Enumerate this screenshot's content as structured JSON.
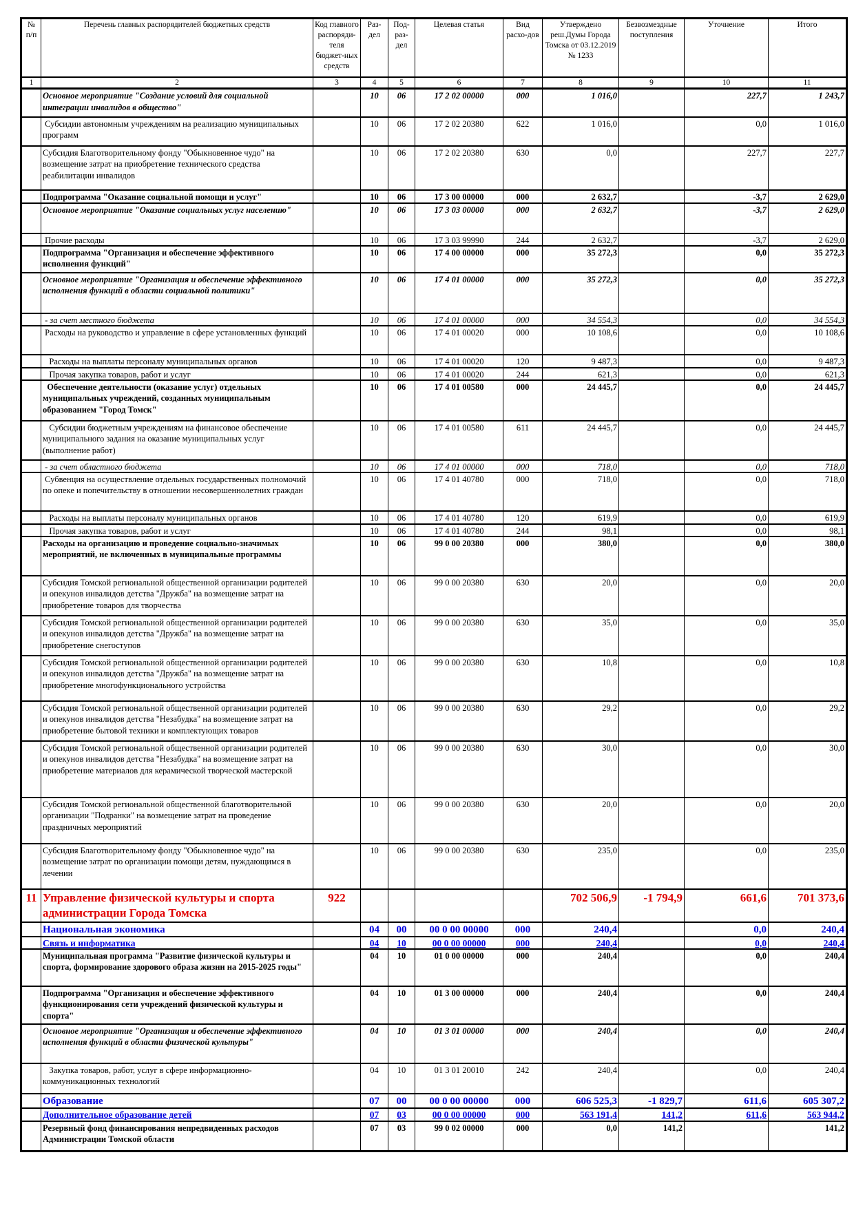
{
  "header": {
    "columns": [
      "№ п/п",
      "Перечень главных распорядителей бюджетных средств",
      "Код главного распоряди-теля бюджет-ных средств",
      "Раз-дел",
      "Под-раз-дел",
      "Целевая статья",
      "Вид расхо-дов",
      "Утверждено реш.Думы Города Томска от 03.12.2019 № 1233",
      "Безвозмездные поступления",
      "Уточнение",
      "Итого"
    ],
    "column_numbers": [
      "1",
      "2",
      "3",
      "4",
      "5",
      "6",
      "7",
      "8",
      "9",
      "10",
      "11"
    ]
  },
  "rows": [
    {
      "style": "bi",
      "num": "",
      "name": "Основное мероприятие \"Создание условий для социальной интеграции инвалидов в общество\"",
      "code": "",
      "razdel": "10",
      "podrazdel": "06",
      "target": "17 2 02 00000",
      "vid": "000",
      "approved": "1 016,0",
      "free": "",
      "clarif": "227,7",
      "total": "1 243,7"
    },
    {
      "style": "",
      "num": "",
      "name": " Субсидии автономным учреждениям на реализацию муниципальных программ",
      "code": "",
      "razdel": "10",
      "podrazdel": "06",
      "target": "17 2 02 20380",
      "vid": "622",
      "approved": "1 016,0",
      "free": "",
      "clarif": "0,0",
      "total": "1 016,0"
    },
    {
      "style": "",
      "num": "",
      "name": "Субсидия Благотворительному фонду \"Обыкновенное чудо\" на возмещение затрат на приобретение технического средства реабилитации инвалидов",
      "code": "",
      "razdel": "10",
      "podrazdel": "06",
      "target": "17 2 02 20380",
      "vid": "630",
      "approved": "0,0",
      "free": "",
      "clarif": "227,7",
      "total": "227,7"
    },
    {
      "style": "bold",
      "num": "",
      "name": "Подпрограмма \"Оказание социальной помощи и услуг\"",
      "code": "",
      "razdel": "10",
      "podrazdel": "06",
      "target": "17 3 00 00000",
      "vid": "000",
      "approved": "2 632,7",
      "free": "",
      "clarif": "-3,7",
      "total": "2 629,0"
    },
    {
      "style": "bi",
      "num": "",
      "name": "Основное мероприятие \"Оказание социальных услуг населению\"",
      "code": "",
      "razdel": "10",
      "podrazdel": "06",
      "target": "17 3 03 00000",
      "vid": "000",
      "approved": "2 632,7",
      "free": "",
      "clarif": "-3,7",
      "total": "2 629,0"
    },
    {
      "style": "",
      "num": "",
      "name": " Прочие расходы",
      "code": "",
      "razdel": "10",
      "podrazdel": "06",
      "target": "17 3 03 99990",
      "vid": "244",
      "approved": "2 632,7",
      "free": "",
      "clarif": "-3,7",
      "total": "2 629,0"
    },
    {
      "style": "bold",
      "num": "",
      "name": "Подпрограмма \"Организация и обеспечение эффективного исполнения функций\"",
      "code": "",
      "razdel": "10",
      "podrazdel": "06",
      "target": "17 4 00 00000",
      "vid": "000",
      "approved": "35 272,3",
      "free": "",
      "clarif": "0,0",
      "total": "35 272,3"
    },
    {
      "style": "bi",
      "num": "",
      "name": "Основное мероприятие \"Организация и обеспечение эффективного исполнения функций в области социальной политики\"",
      "code": "",
      "razdel": "10",
      "podrazdel": "06",
      "target": "17 4 01 00000",
      "vid": "000",
      "approved": "35 272,3",
      "free": "",
      "clarif": "0,0",
      "total": "35 272,3"
    },
    {
      "style": "it",
      "num": "",
      "name": " - за счет местного бюджета",
      "code": "",
      "razdel": "10",
      "podrazdel": "06",
      "target": "17 4 01 00000",
      "vid": "000",
      "approved": "34 554,3",
      "free": "",
      "clarif": "0,0",
      "total": "34 554,3"
    },
    {
      "style": "",
      "num": "",
      "name": " Расходы на руководство и управление в сфере установленных функций",
      "code": "",
      "razdel": "10",
      "podrazdel": "06",
      "target": "17 4 01 00020",
      "vid": "000",
      "approved": "10 108,6",
      "free": "",
      "clarif": "0,0",
      "total": "10 108,6"
    },
    {
      "style": "",
      "num": "",
      "name": "   Расходы на выплаты персоналу муниципальных органов",
      "code": "",
      "razdel": "10",
      "podrazdel": "06",
      "target": "17 4 01 00020",
      "vid": "120",
      "approved": "9 487,3",
      "free": "",
      "clarif": "0,0",
      "total": "9 487,3"
    },
    {
      "style": "",
      "num": "",
      "name": "   Прочая закупка товаров, работ и услуг",
      "code": "",
      "razdel": "10",
      "podrazdel": "06",
      "target": "17 4 01 00020",
      "vid": "244",
      "approved": "621,3",
      "free": "",
      "clarif": "0,0",
      "total": "621,3"
    },
    {
      "style": "bold",
      "num": "",
      "name": "  Обеспечение деятельности (оказание услуг) отдельных муниципальных учреждений, созданных муниципальным образованием \"Город Томск\"",
      "code": "",
      "razdel": "10",
      "podrazdel": "06",
      "target": "17 4 01 00580",
      "vid": "000",
      "approved": "24 445,7",
      "free": "",
      "clarif": "0,0",
      "total": "24 445,7"
    },
    {
      "style": "",
      "num": "",
      "name": "   Субсидии бюджетным учреждениям на финансовое обеспечение муниципального задания на оказание муниципальных услуг (выполнение работ)",
      "code": "",
      "razdel": "10",
      "podrazdel": "06",
      "target": "17 4 01 00580",
      "vid": "611",
      "approved": "24 445,7",
      "free": "",
      "clarif": "0,0",
      "total": "24 445,7"
    },
    {
      "style": "it",
      "num": "",
      "name": " - за счет областного бюджета",
      "code": "",
      "razdel": "10",
      "podrazdel": "06",
      "target": "17 4 01 00000",
      "vid": "000",
      "approved": "718,0",
      "free": "",
      "clarif": "0,0",
      "total": "718,0"
    },
    {
      "style": "",
      "num": "",
      "name": " Субвенция на осуществление отдельных государственных полномочий по опеке и попечительству в отношении несовершеннолетних граждан",
      "code": "",
      "razdel": "10",
      "podrazdel": "06",
      "target": "17 4 01 40780",
      "vid": "000",
      "approved": "718,0",
      "free": "",
      "clarif": "0,0",
      "total": "718,0"
    },
    {
      "style": "",
      "num": "",
      "name": "   Расходы на выплаты персоналу муниципальных органов",
      "code": "",
      "razdel": "10",
      "podrazdel": "06",
      "target": "17 4 01 40780",
      "vid": "120",
      "approved": "619,9",
      "free": "",
      "clarif": "0,0",
      "total": "619,9"
    },
    {
      "style": "",
      "num": "",
      "name": "   Прочая закупка товаров, работ и услуг",
      "code": "",
      "razdel": "10",
      "podrazdel": "06",
      "target": "17 4 01 40780",
      "vid": "244",
      "approved": "98,1",
      "free": "",
      "clarif": "0,0",
      "total": "98,1"
    },
    {
      "style": "bold",
      "num": "",
      "name": "Расходы на организацию и проведение социально-значимых мероприятий, не включенных в муниципальные программы",
      "code": "",
      "razdel": "10",
      "podrazdel": "06",
      "target": "99 0 00 20380",
      "vid": "000",
      "approved": "380,0",
      "free": "",
      "clarif": "0,0",
      "total": "380,0"
    },
    {
      "style": "",
      "num": "",
      "name": "Субсидия Томской региональной общественной организации родителей и опекунов инвалидов детства \"Дружба\" на возмещение затрат на приобретение товаров для творчества",
      "code": "",
      "razdel": "10",
      "podrazdel": "06",
      "target": "99 0 00 20380",
      "vid": "630",
      "approved": "20,0",
      "free": "",
      "clarif": "0,0",
      "total": "20,0"
    },
    {
      "style": "",
      "num": "",
      "name": "Субсидия Томской региональной общественной организации родителей и опекунов инвалидов детства \"Дружба\" на возмещение затрат на приобретение снегоступов",
      "code": "",
      "razdel": "10",
      "podrazdel": "06",
      "target": "99 0 00 20380",
      "vid": "630",
      "approved": "35,0",
      "free": "",
      "clarif": "0,0",
      "total": "35,0"
    },
    {
      "style": "",
      "num": "",
      "name": "Субсидия Томской региональной общественной организации родителей и опекунов инвалидов детства \"Дружба\" на возмещение затрат на приобретение многофункционального устройства",
      "code": "",
      "razdel": "10",
      "podrazdel": "06",
      "target": "99 0 00 20380",
      "vid": "630",
      "approved": "10,8",
      "free": "",
      "clarif": "0,0",
      "total": "10,8"
    },
    {
      "style": "",
      "num": "",
      "name": "Субсидия Томской региональной общественной организации родителей и опекунов инвалидов детства \"Незабудка\" на возмещение затрат на приобретение бытовой техники и комплектующих товаров",
      "code": "",
      "razdel": "10",
      "podrazdel": "06",
      "target": "99 0 00 20380",
      "vid": "630",
      "approved": "29,2",
      "free": "",
      "clarif": "0,0",
      "total": "29,2"
    },
    {
      "style": "",
      "num": "",
      "name": "Субсидия Томской региональной общественной организации родителей и опекунов инвалидов детства \"Незабудка\" на возмещение затрат на приобретение материалов для керамической творческой мастерской",
      "code": "",
      "razdel": "10",
      "podrazdel": "06",
      "target": "99 0 00 20380",
      "vid": "630",
      "approved": "30,0",
      "free": "",
      "clarif": "0,0",
      "total": "30,0"
    },
    {
      "style": "",
      "num": "",
      "name": "Субсидия Томской региональной общественной благотворительной организации \"Подранки\" на возмещение затрат на проведение праздничных мероприятий",
      "code": "",
      "razdel": "10",
      "podrazdel": "06",
      "target": "99 0 00 20380",
      "vid": "630",
      "approved": "20,0",
      "free": "",
      "clarif": "0,0",
      "total": "20,0"
    },
    {
      "style": "",
      "num": "",
      "name": "Субсидия Благотворительному фонду \"Обыкновенное чудо\" на возмещение затрат по организации помощи детям, нуждающимся в лечении",
      "code": "",
      "razdel": "10",
      "podrazdel": "06",
      "target": "99 0 00 20380",
      "vid": "630",
      "approved": "235,0",
      "free": "",
      "clarif": "0,0",
      "total": "235,0"
    },
    {
      "style": "section",
      "num": "11",
      "name": "Управление физической культуры и спорта администрации Города Томска",
      "code": "922",
      "razdel": "",
      "podrazdel": "",
      "target": "",
      "vid": "",
      "approved": "702 506,9",
      "free": "-1 794,9",
      "clarif": "661,6",
      "total": "701 373,6"
    },
    {
      "style": "blue",
      "num": "",
      "name": "Национальная экономика",
      "code": "",
      "razdel": "04",
      "podrazdel": "00",
      "target": "00 0 00 00000",
      "vid": "000",
      "approved": "240,4",
      "free": "",
      "clarif": "0,0",
      "total": "240,4"
    },
    {
      "style": "blue2",
      "num": "",
      "name": "Связь и информатика",
      "code": "",
      "razdel": "04",
      "podrazdel": "10",
      "target": "00 0 00 00000",
      "vid": "000",
      "approved": "240,4",
      "free": "",
      "clarif": "0,0",
      "total": "240,4"
    },
    {
      "style": "bold",
      "num": "",
      "name": "Муниципальная программа \"Развитие физической культуры и спорта, формирование здорового образа жизни на 2015-2025 годы\"",
      "code": "",
      "razdel": "04",
      "podrazdel": "10",
      "target": "01 0 00 00000",
      "vid": "000",
      "approved": "240,4",
      "free": "",
      "clarif": "0,0",
      "total": "240,4"
    },
    {
      "style": "bold",
      "num": "",
      "name": "Подпрограмма \"Организация и обеспечение эффективного функционирования сети учреждений физической культуры и спорта\"",
      "code": "",
      "razdel": "04",
      "podrazdel": "10",
      "target": "01 3 00 00000",
      "vid": "000",
      "approved": "240,4",
      "free": "",
      "clarif": "0,0",
      "total": "240,4"
    },
    {
      "style": "bi",
      "num": "",
      "name": "Основное мероприятие \"Организация и обеспечение эффективного исполнения функций в области физической культуры\"",
      "code": "",
      "razdel": "04",
      "podrazdel": "10",
      "target": "01 3 01 00000",
      "vid": "000",
      "approved": "240,4",
      "free": "",
      "clarif": "0,0",
      "total": "240,4"
    },
    {
      "style": "",
      "num": "",
      "name": "   Закупка товаров, работ, услуг в сфере информационно-коммуникационных технологий",
      "code": "",
      "razdel": "04",
      "podrazdel": "10",
      "target": "01 3 01 20010",
      "vid": "242",
      "approved": "240,4",
      "free": "",
      "clarif": "0,0",
      "total": "240,4"
    },
    {
      "style": "blue",
      "num": "",
      "name": "Образование",
      "code": "",
      "razdel": "07",
      "podrazdel": "00",
      "target": "00 0 00 00000",
      "vid": "000",
      "approved": "606 525,3",
      "free": "-1 829,7",
      "clarif": "611,6",
      "total": "605 307,2"
    },
    {
      "style": "blue2",
      "num": "",
      "name": "Дополнительное образование детей",
      "code": "",
      "razdel": "07",
      "podrazdel": "03",
      "target": "00 0 00 00000",
      "vid": "000",
      "approved": "563 191,4",
      "free": "141,2",
      "clarif": "611,6",
      "total": "563 944,2"
    },
    {
      "style": "bold",
      "num": "",
      "name": "Резервный фонд финансирования непредвиденных расходов Администрации Томской области",
      "code": "",
      "razdel": "07",
      "podrazdel": "03",
      "target": "99 0 02 00000",
      "vid": "000",
      "approved": "0,0",
      "free": "141,2",
      "clarif": "",
      "total": "141,2"
    }
  ]
}
